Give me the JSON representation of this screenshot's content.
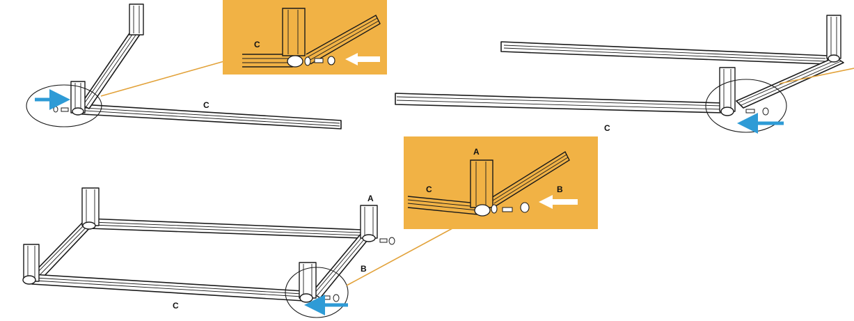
{
  "labels": {
    "step1_rail": "C",
    "step1_inset_rail": "C",
    "step2_rail": "C",
    "step3_rail_c": "C",
    "step3_rail_b": "B",
    "step3_post_a": "A",
    "inset2_post_a": "A",
    "inset2_rail_c": "C",
    "inset2_rail_b": "B"
  },
  "colors": {
    "inset_background": "#f1b245",
    "leader_line": "#e2a23a",
    "blue_arrow": "#2e9bd6",
    "white_arrow": "#ffffff",
    "line_art": "#1a1a1a"
  },
  "icons": {
    "blue_arrow": "arrow-right-icon",
    "white_arrow": "arrow-left-icon",
    "bolt": "bolt-icon",
    "t_nut": "t-nut-icon"
  }
}
